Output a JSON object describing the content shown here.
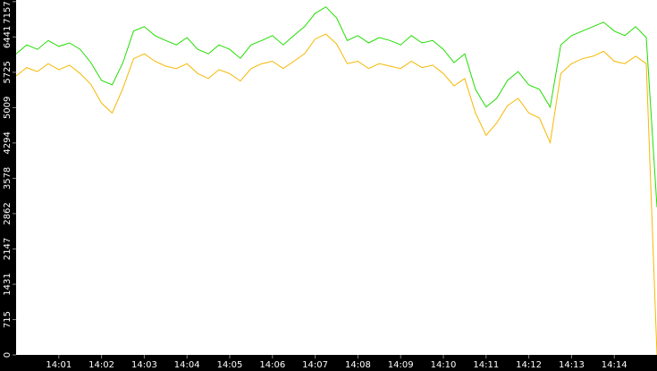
{
  "chart_data": {
    "type": "line",
    "x": [
      0,
      0.25,
      0.5,
      0.75,
      1,
      1.25,
      1.5,
      1.75,
      2,
      2.25,
      2.5,
      2.75,
      3,
      3.25,
      3.5,
      3.75,
      4,
      4.25,
      4.5,
      4.75,
      5,
      5.25,
      5.5,
      5.75,
      6,
      6.25,
      6.5,
      6.75,
      7,
      7.25,
      7.5,
      7.75,
      8,
      8.25,
      8.5,
      8.75,
      9,
      9.25,
      9.5,
      9.75,
      10,
      10.25,
      10.5,
      10.75,
      11,
      11.25,
      11.5,
      11.75,
      12,
      12.25,
      12.5,
      12.75,
      13,
      13.25,
      13.5,
      13.75,
      14,
      14.25,
      14.5,
      14.75,
      15
    ],
    "series": [
      {
        "color": "#22dd00",
        "values": [
          6100,
          6280,
          6190,
          6370,
          6250,
          6320,
          6190,
          5920,
          5560,
          5470,
          5920,
          6560,
          6650,
          6470,
          6370,
          6280,
          6430,
          6190,
          6100,
          6280,
          6190,
          6010,
          6280,
          6370,
          6470,
          6280,
          6470,
          6650,
          6920,
          7050,
          6830,
          6370,
          6470,
          6320,
          6430,
          6370,
          6280,
          6470,
          6320,
          6370,
          6190,
          5920,
          6100,
          5380,
          5020,
          5200,
          5560,
          5740,
          5470,
          5380,
          5020,
          6280,
          6470,
          6560,
          6650,
          6740,
          6560,
          6470,
          6650,
          6430,
          2990
        ]
      },
      {
        "color": "#f5b800",
        "values": [
          5650,
          5820,
          5740,
          5900,
          5780,
          5870,
          5700,
          5480,
          5100,
          4900,
          5400,
          6000,
          6100,
          5950,
          5850,
          5800,
          5900,
          5700,
          5600,
          5780,
          5700,
          5550,
          5800,
          5900,
          5950,
          5800,
          5950,
          6100,
          6400,
          6500,
          6300,
          5900,
          5950,
          5800,
          5900,
          5850,
          5800,
          5950,
          5820,
          5870,
          5700,
          5450,
          5600,
          4900,
          4450,
          4700,
          5050,
          5200,
          4900,
          4800,
          4300,
          5700,
          5900,
          6000,
          6050,
          6150,
          5950,
          5900,
          6050,
          5900,
          0
        ]
      }
    ],
    "xlim": [
      0,
      15
    ],
    "xticks": [
      {
        "value": 1,
        "label": "14:01"
      },
      {
        "value": 2,
        "label": "14:02"
      },
      {
        "value": 3,
        "label": "14:03"
      },
      {
        "value": 4,
        "label": "14:04"
      },
      {
        "value": 5,
        "label": "14:05"
      },
      {
        "value": 6,
        "label": "14:06"
      },
      {
        "value": 7,
        "label": "14:07"
      },
      {
        "value": 8,
        "label": "14:08"
      },
      {
        "value": 9,
        "label": "14:09"
      },
      {
        "value": 10,
        "label": "14:10"
      },
      {
        "value": 11,
        "label": "14:11"
      },
      {
        "value": 12,
        "label": "14:12"
      },
      {
        "value": 13,
        "label": "14:13"
      },
      {
        "value": 14,
        "label": "14:14"
      }
    ],
    "ylim": [
      0,
      7190
    ],
    "yticks": [
      0,
      715,
      1431,
      2147,
      2862,
      3578,
      4294,
      5009,
      5725,
      6441,
      7157
    ]
  }
}
